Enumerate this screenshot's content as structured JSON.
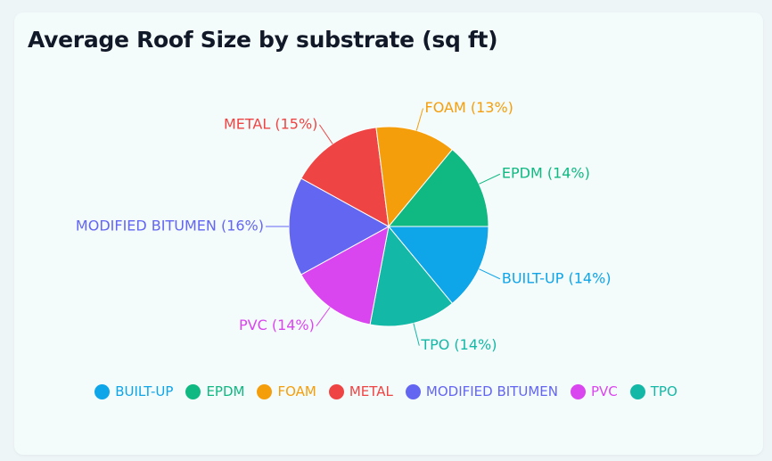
{
  "title": "Average Roof Size by substrate (sq ft)",
  "chart_data": {
    "type": "pie",
    "title": "Average Roof Size by substrate (sq ft)",
    "slices": [
      {
        "name": "BUILT-UP",
        "percent": 14,
        "color": "#0ea5e9",
        "label": "BUILT-UP (14%)"
      },
      {
        "name": "TPO",
        "percent": 14,
        "color": "#14b8a6",
        "label": "TPO (14%)"
      },
      {
        "name": "PVC",
        "percent": 14,
        "color": "#d946ef",
        "label": "PVC (14%)"
      },
      {
        "name": "MODIFIED BITUMEN",
        "percent": 16,
        "color": "#6366f1",
        "label": "MODIFIED BITUMEN (16%)"
      },
      {
        "name": "METAL",
        "percent": 15,
        "color": "#ef4444",
        "label": "METAL (15%)"
      },
      {
        "name": "FOAM",
        "percent": 13,
        "color": "#f59e0b",
        "label": "FOAM (13%)"
      },
      {
        "name": "EPDM",
        "percent": 14,
        "color": "#10b981",
        "label": "EPDM (14%)"
      }
    ],
    "legend": {
      "placement": "bottom",
      "items": [
        {
          "label": "BUILT-UP",
          "color": "#0ea5e9"
        },
        {
          "label": "EPDM",
          "color": "#10b981"
        },
        {
          "label": "FOAM",
          "color": "#f59e0b"
        },
        {
          "label": "METAL",
          "color": "#ef4444"
        },
        {
          "label": "MODIFIED BITUMEN",
          "color": "#6366f1"
        },
        {
          "label": "PVC",
          "color": "#d946ef"
        },
        {
          "label": "TPO",
          "color": "#14b8a6"
        }
      ]
    }
  }
}
